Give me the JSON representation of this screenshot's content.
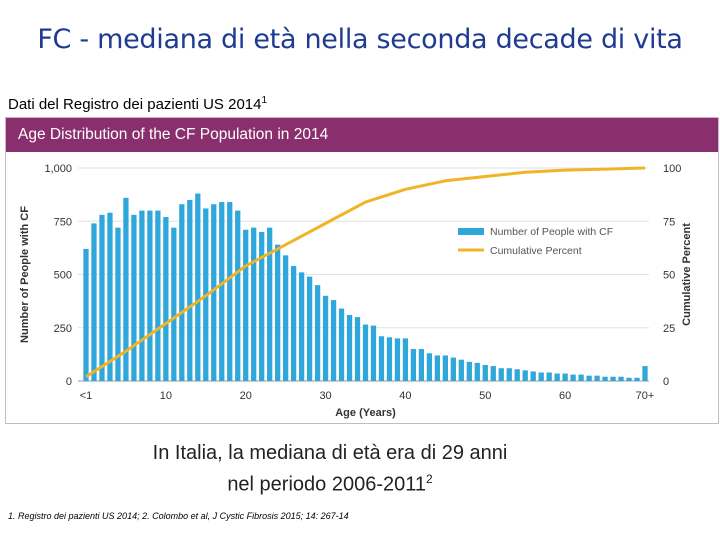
{
  "slide": {
    "title": "FC - mediana di età nella seconda decade di vita",
    "source_text": "Dati del Registro dei pazienti US 2014",
    "source_sup": "1",
    "finding_line1": "In Italia, la mediana di età era di 29 anni",
    "finding_line2": "nel periodo 2006-2011",
    "finding_sup": "2",
    "references": "1. Registro dei pazienti US 2014; 2. Colombo et al, J Cystic Fibrosis 2015; 14: 267-14"
  },
  "colors": {
    "header": "#8a2f6e",
    "bars": "#2fa7db",
    "cumulative": "#f0b429",
    "title": "#1f3a93"
  },
  "chart_data": {
    "type": "bar",
    "title": "Age Distribution of the CF Population in 2014",
    "xlabel": "Age (Years)",
    "ylabel": "Number of People with CF",
    "y2label": "Cumulative Percent",
    "ylim": [
      0,
      1000
    ],
    "y2lim": [
      0,
      100
    ],
    "yticks": [
      "0",
      "250",
      "500",
      "750",
      "1,000"
    ],
    "y2ticks": [
      "0",
      "25",
      "50",
      "75",
      "100"
    ],
    "xticks": [
      {
        "age": 0,
        "label": "<1"
      },
      {
        "age": 10,
        "label": "10"
      },
      {
        "age": 20,
        "label": "20"
      },
      {
        "age": 30,
        "label": "30"
      },
      {
        "age": 40,
        "label": "40"
      },
      {
        "age": 50,
        "label": "50"
      },
      {
        "age": 60,
        "label": "60"
      },
      {
        "age": 70,
        "label": "70+"
      }
    ],
    "grid": true,
    "legend_position": "right",
    "series": [
      {
        "name": "Number of People with CF",
        "type": "bar",
        "ages": [
          0,
          1,
          2,
          3,
          4,
          5,
          6,
          7,
          8,
          9,
          10,
          11,
          12,
          13,
          14,
          15,
          16,
          17,
          18,
          19,
          20,
          21,
          22,
          23,
          24,
          25,
          26,
          27,
          28,
          29,
          30,
          31,
          32,
          33,
          34,
          35,
          36,
          37,
          38,
          39,
          40,
          41,
          42,
          43,
          44,
          45,
          46,
          47,
          48,
          49,
          50,
          51,
          52,
          53,
          54,
          55,
          56,
          57,
          58,
          59,
          60,
          61,
          62,
          63,
          64,
          65,
          66,
          67,
          68,
          69,
          70
        ],
        "values": [
          620,
          740,
          780,
          790,
          720,
          860,
          780,
          800,
          800,
          800,
          770,
          720,
          830,
          850,
          880,
          810,
          830,
          840,
          840,
          800,
          710,
          720,
          700,
          720,
          640,
          590,
          540,
          510,
          490,
          450,
          400,
          380,
          340,
          310,
          300,
          265,
          260,
          210,
          205,
          200,
          200,
          150,
          150,
          130,
          120,
          120,
          110,
          100,
          90,
          85,
          75,
          70,
          60,
          60,
          55,
          50,
          45,
          40,
          40,
          35,
          35,
          30,
          30,
          25,
          25,
          20,
          20,
          20,
          15,
          15,
          70
        ]
      },
      {
        "name": "Cumulative Percent",
        "type": "line",
        "ages": [
          0,
          5,
          10,
          15,
          20,
          25,
          30,
          35,
          40,
          45,
          50,
          55,
          60,
          65,
          70
        ],
        "values": [
          2,
          14,
          27,
          40,
          54,
          64,
          74,
          84,
          90,
          94,
          96,
          98,
          99,
          99.5,
          100
        ]
      }
    ]
  }
}
